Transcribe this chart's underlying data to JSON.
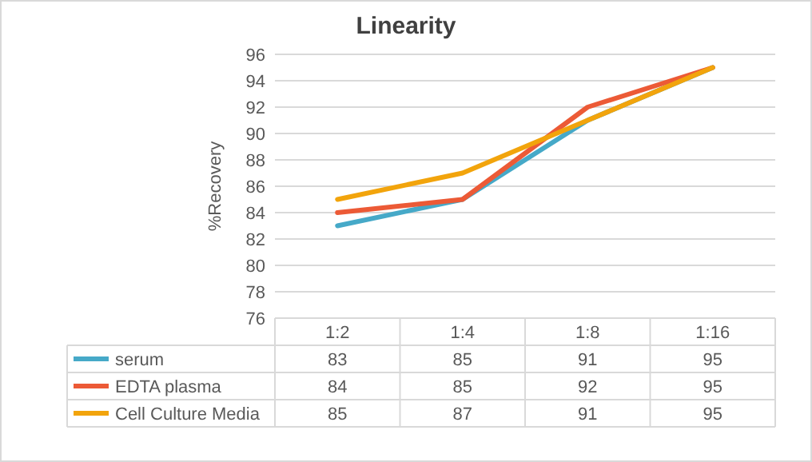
{
  "chart_data": {
    "type": "line",
    "title": "Linearity",
    "ylabel": "%Recovery",
    "categories": [
      "1:2",
      "1:4",
      "1:8",
      "1:16"
    ],
    "series": [
      {
        "name": "serum",
        "color": "#46a9c8",
        "values": [
          83,
          85,
          91,
          95
        ]
      },
      {
        "name": "EDTA plasma",
        "color": "#ec5a36",
        "values": [
          84,
          85,
          92,
          95
        ]
      },
      {
        "name": "Cell Culture Media",
        "color": "#f2a40c",
        "values": [
          85,
          87,
          91,
          95
        ]
      }
    ],
    "ylim": [
      76,
      96
    ],
    "yticks": [
      76,
      78,
      80,
      82,
      84,
      86,
      88,
      90,
      92,
      94,
      96
    ],
    "grid": "y",
    "legend": "bottom",
    "data_labels": true
  }
}
